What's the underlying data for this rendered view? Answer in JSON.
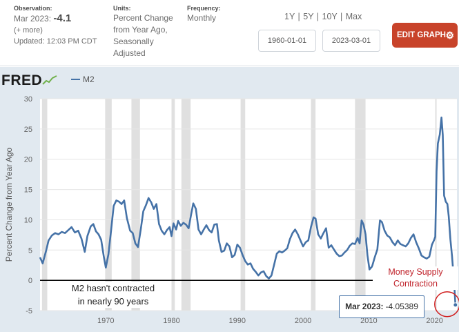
{
  "header": {
    "observation": {
      "heading": "Observation:",
      "date": "Mar 2023:",
      "value": "-4.1",
      "more": "(+ more)",
      "updated": "Updated: 12:03 PM CDT"
    },
    "units": {
      "heading": "Units:",
      "lines": [
        "Percent Change",
        "from Year Ago,",
        "Seasonally",
        "Adjusted"
      ]
    },
    "frequency": {
      "heading": "Frequency:",
      "value": "Monthly"
    },
    "range_links": "1Y | 5Y | 10Y | Max",
    "start_date": "1960-01-01",
    "end_date": "2023-03-01",
    "edit_button": "EDIT GRAPH",
    "colors": {
      "edit_button": "#c8432a",
      "series": "#4572a7",
      "panel": "#e1e9f0"
    }
  },
  "chart_data": {
    "type": "line",
    "logo": "FRED",
    "series": [
      {
        "name": "M2",
        "color": "#4572a7",
        "points": [
          [
            1960.0,
            3.8
          ],
          [
            1960.4,
            2.8
          ],
          [
            1960.9,
            4.8
          ],
          [
            1961.3,
            6.6
          ],
          [
            1961.8,
            7.4
          ],
          [
            1962.3,
            7.8
          ],
          [
            1962.8,
            7.6
          ],
          [
            1963.3,
            8.0
          ],
          [
            1963.8,
            7.8
          ],
          [
            1964.3,
            8.3
          ],
          [
            1964.8,
            8.8
          ],
          [
            1965.3,
            7.9
          ],
          [
            1965.8,
            8.2
          ],
          [
            1966.3,
            6.9
          ],
          [
            1966.8,
            4.7
          ],
          [
            1967.2,
            7.3
          ],
          [
            1967.7,
            8.9
          ],
          [
            1968.1,
            9.3
          ],
          [
            1968.5,
            8.1
          ],
          [
            1968.9,
            7.6
          ],
          [
            1969.3,
            6.7
          ],
          [
            1969.7,
            3.9
          ],
          [
            1970.0,
            2.1
          ],
          [
            1970.4,
            4.3
          ],
          [
            1970.8,
            8.2
          ],
          [
            1971.2,
            12.3
          ],
          [
            1971.6,
            13.2
          ],
          [
            1972.0,
            13.0
          ],
          [
            1972.4,
            12.6
          ],
          [
            1972.8,
            13.2
          ],
          [
            1973.2,
            10.3
          ],
          [
            1973.7,
            8.2
          ],
          [
            1974.1,
            7.8
          ],
          [
            1974.5,
            6.1
          ],
          [
            1974.9,
            5.5
          ],
          [
            1975.3,
            8.3
          ],
          [
            1975.7,
            11.4
          ],
          [
            1976.1,
            12.4
          ],
          [
            1976.5,
            13.6
          ],
          [
            1976.9,
            12.9
          ],
          [
            1977.3,
            11.8
          ],
          [
            1977.7,
            12.6
          ],
          [
            1978.1,
            9.3
          ],
          [
            1978.5,
            8.2
          ],
          [
            1978.9,
            7.6
          ],
          [
            1979.3,
            8.3
          ],
          [
            1979.7,
            8.8
          ],
          [
            1980.0,
            7.3
          ],
          [
            1980.3,
            9.4
          ],
          [
            1980.7,
            8.4
          ],
          [
            1981.0,
            9.8
          ],
          [
            1981.4,
            9.0
          ],
          [
            1981.8,
            9.5
          ],
          [
            1982.2,
            9.2
          ],
          [
            1982.6,
            8.6
          ],
          [
            1983.0,
            11.0
          ],
          [
            1983.3,
            12.7
          ],
          [
            1983.7,
            11.8
          ],
          [
            1984.1,
            8.4
          ],
          [
            1984.5,
            7.6
          ],
          [
            1984.9,
            8.4
          ],
          [
            1985.3,
            9.1
          ],
          [
            1985.7,
            8.3
          ],
          [
            1986.1,
            7.9
          ],
          [
            1986.5,
            9.2
          ],
          [
            1986.9,
            9.3
          ],
          [
            1987.2,
            6.6
          ],
          [
            1987.6,
            4.7
          ],
          [
            1988.0,
            4.9
          ],
          [
            1988.4,
            6.1
          ],
          [
            1988.8,
            5.6
          ],
          [
            1989.2,
            3.8
          ],
          [
            1989.6,
            4.2
          ],
          [
            1990.0,
            5.9
          ],
          [
            1990.4,
            5.4
          ],
          [
            1990.8,
            4.2
          ],
          [
            1991.2,
            3.2
          ],
          [
            1991.6,
            2.6
          ],
          [
            1992.0,
            2.8
          ],
          [
            1992.4,
            1.9
          ],
          [
            1992.8,
            1.4
          ],
          [
            1993.2,
            0.8
          ],
          [
            1993.6,
            1.3
          ],
          [
            1994.0,
            1.5
          ],
          [
            1994.4,
            0.7
          ],
          [
            1994.8,
            0.3
          ],
          [
            1995.2,
            0.8
          ],
          [
            1995.6,
            2.6
          ],
          [
            1996.0,
            4.4
          ],
          [
            1996.4,
            4.8
          ],
          [
            1996.8,
            4.6
          ],
          [
            1997.2,
            4.9
          ],
          [
            1997.6,
            5.3
          ],
          [
            1998.0,
            6.8
          ],
          [
            1998.4,
            7.8
          ],
          [
            1998.8,
            8.4
          ],
          [
            1999.2,
            7.6
          ],
          [
            1999.6,
            6.6
          ],
          [
            2000.0,
            5.6
          ],
          [
            2000.4,
            6.3
          ],
          [
            2000.8,
            6.6
          ],
          [
            2001.2,
            8.8
          ],
          [
            2001.6,
            10.4
          ],
          [
            2001.9,
            10.2
          ],
          [
            2002.3,
            7.6
          ],
          [
            2002.7,
            6.9
          ],
          [
            2003.1,
            7.8
          ],
          [
            2003.5,
            8.6
          ],
          [
            2003.9,
            5.4
          ],
          [
            2004.3,
            5.8
          ],
          [
            2004.7,
            5.1
          ],
          [
            2005.1,
            4.4
          ],
          [
            2005.5,
            4.0
          ],
          [
            2005.9,
            4.1
          ],
          [
            2006.3,
            4.6
          ],
          [
            2006.7,
            5.0
          ],
          [
            2007.1,
            5.7
          ],
          [
            2007.5,
            6.1
          ],
          [
            2007.9,
            6.0
          ],
          [
            2008.3,
            7.0
          ],
          [
            2008.6,
            6.1
          ],
          [
            2008.9,
            9.9
          ],
          [
            2009.2,
            9.2
          ],
          [
            2009.5,
            7.6
          ],
          [
            2009.8,
            4.1
          ],
          [
            2010.1,
            1.8
          ],
          [
            2010.5,
            2.3
          ],
          [
            2010.9,
            3.8
          ],
          [
            2011.3,
            5.1
          ],
          [
            2011.7,
            9.9
          ],
          [
            2012.0,
            9.6
          ],
          [
            2012.4,
            8.2
          ],
          [
            2012.8,
            7.4
          ],
          [
            2013.2,
            7.1
          ],
          [
            2013.6,
            6.3
          ],
          [
            2014.0,
            5.8
          ],
          [
            2014.4,
            6.6
          ],
          [
            2014.8,
            6.0
          ],
          [
            2015.2,
            5.8
          ],
          [
            2015.6,
            5.6
          ],
          [
            2016.0,
            6.1
          ],
          [
            2016.4,
            7.0
          ],
          [
            2016.8,
            7.6
          ],
          [
            2017.2,
            6.3
          ],
          [
            2017.6,
            5.3
          ],
          [
            2018.0,
            4.1
          ],
          [
            2018.4,
            3.8
          ],
          [
            2018.8,
            3.6
          ],
          [
            2019.2,
            3.9
          ],
          [
            2019.6,
            5.9
          ],
          [
            2019.9,
            6.6
          ],
          [
            2020.1,
            7.2
          ],
          [
            2020.3,
            18.0
          ],
          [
            2020.5,
            22.6
          ],
          [
            2020.8,
            24.1
          ],
          [
            2021.05,
            26.9
          ],
          [
            2021.25,
            24.0
          ],
          [
            2021.45,
            14.0
          ],
          [
            2021.7,
            13.0
          ],
          [
            2021.95,
            12.6
          ],
          [
            2022.15,
            10.6
          ],
          [
            2022.4,
            6.8
          ],
          [
            2022.65,
            4.0
          ],
          [
            2022.9,
            0.6
          ],
          [
            2023.05,
            -1.8
          ],
          [
            2023.17,
            -4.05389
          ]
        ]
      }
    ],
    "recessions": [
      [
        1960.3,
        1961.1
      ],
      [
        1969.9,
        1970.9
      ],
      [
        1973.9,
        1975.2
      ],
      [
        1980.0,
        1980.5
      ],
      [
        1981.5,
        1982.9
      ],
      [
        1990.5,
        1991.2
      ],
      [
        2001.2,
        2001.9
      ],
      [
        2007.9,
        2009.5
      ],
      [
        2020.1,
        2020.3
      ]
    ],
    "xlim": [
      1960,
      2023.4
    ],
    "ylim": [
      -5,
      30
    ],
    "xticks": [
      "1970",
      "1980",
      "1990",
      "2000",
      "2010",
      "2020"
    ],
    "xtick_values": [
      1970,
      1980,
      1990,
      2000,
      2010,
      2020
    ],
    "yticks": [
      "-5",
      "0",
      "5",
      "10",
      "15",
      "20",
      "25",
      "30"
    ],
    "ytick_values": [
      -5,
      0,
      5,
      10,
      15,
      20,
      25,
      30
    ],
    "ylabel": "Percent Change from Year Ago",
    "grid": true,
    "legend": "top-left",
    "zero_line_color": "#000000",
    "annotation_lines": [
      "M2 hasn't contracted",
      "in nearly 90 years"
    ],
    "money_label_lines": [
      "Money Supply",
      "Contraction"
    ],
    "money_label_color": "#c0222a",
    "tooltip": {
      "label": "Mar 2023:",
      "value": "-4.05389"
    }
  }
}
